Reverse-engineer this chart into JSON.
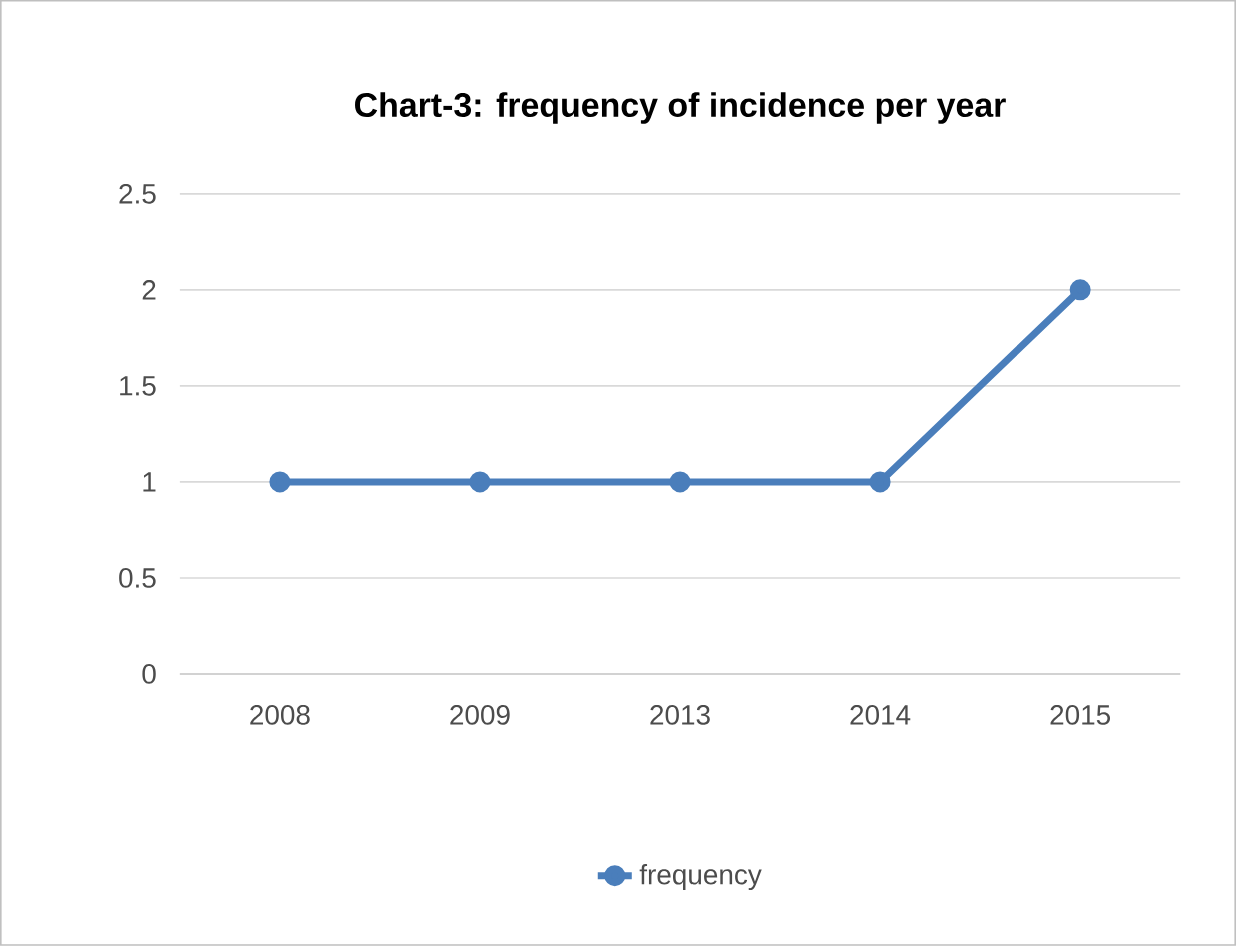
{
  "chart_data": {
    "type": "line",
    "title": "Chart-3: frequency of incidence per year",
    "categories": [
      "2008",
      "2009",
      "2013",
      "2014",
      "2015"
    ],
    "series": [
      {
        "name": "frequency",
        "color": "#4a7ebb",
        "values": [
          1,
          1,
          1,
          1,
          2
        ]
      }
    ],
    "ylim": [
      0,
      2.5
    ],
    "yticks": [
      0,
      0.5,
      1,
      1.5,
      2,
      2.5
    ],
    "grid": "y",
    "legend": "bottom",
    "marker": "circle",
    "line_style": "solid"
  }
}
